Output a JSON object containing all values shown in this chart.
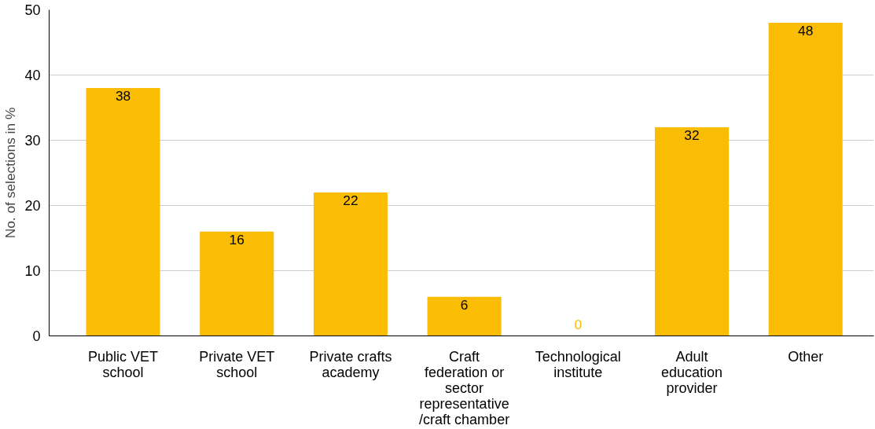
{
  "chart_data": {
    "type": "bar",
    "ylabel": "No. of selections in %",
    "categories": [
      "Public VET school",
      "Private VET school",
      "Private crafts academy",
      "Craft federation or sector representative /craft chamber",
      "Technological institute",
      "Adult education provider",
      "Other"
    ],
    "values": [
      38,
      16,
      22,
      6,
      0,
      32,
      48
    ],
    "color": "#fbbc04",
    "ylim": [
      0,
      50
    ],
    "yticks": [
      0,
      10,
      20,
      30,
      40,
      50
    ],
    "grid": "y",
    "data_labels": true
  }
}
